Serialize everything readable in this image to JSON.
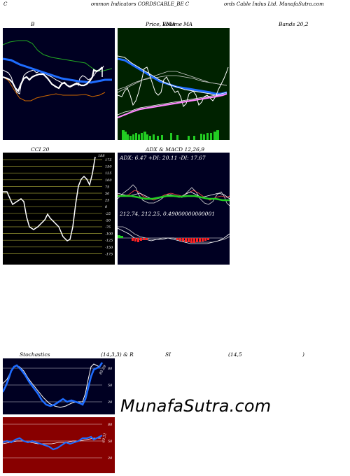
{
  "header": {
    "part1": "C",
    "part2": "ommon  Indicators CORDSCABLE_BE C",
    "part3": "ords Cable  Indus Ltd. MunafaSutra.com"
  },
  "panels": {
    "bollinger": {
      "label_left": "B",
      "label_right": "Bands 20,2"
    },
    "price": {
      "label_a": "Price,",
      "label_b": "Volume",
      "label_c": "MA",
      "label_overlap": "EMA"
    },
    "cci": {
      "label": "CCI 20",
      "value_label": "188",
      "ticks": [
        "175",
        "150",
        "125",
        "100",
        "75",
        "50",
        "25",
        "0",
        "-25",
        "-50",
        "-75",
        "-100",
        "-125",
        "-150",
        "-175"
      ]
    },
    "adx": {
      "label": "ADX  & MACD 12,26,9",
      "adx_text": "ADX: 6.47 +DI: 20.11 -DI: 17.67",
      "macd_text": "212.74,  212.25,  0.49000000000001"
    },
    "stoch": {
      "label_left": "Stochastics",
      "label_mid": "(14,3,3) & R",
      "label_si": "SI",
      "label_right": "(14,5",
      "label_paren": ")",
      "ticks": [
        "80",
        "50",
        "20"
      ],
      "value_label": "85.69"
    },
    "rsi": {
      "ticks": [
        "80",
        "50",
        "20"
      ],
      "value_label": "60.51"
    }
  },
  "watermark": "MunafaSutra.com",
  "colors": {
    "navy_bg": "#000022",
    "green_bg": "#002200",
    "black_bg": "#000000",
    "red_bg": "#880000",
    "grid_olive": "#999933",
    "accent_blue": "#1e6cff",
    "accent_green": "#22cc22"
  }
}
